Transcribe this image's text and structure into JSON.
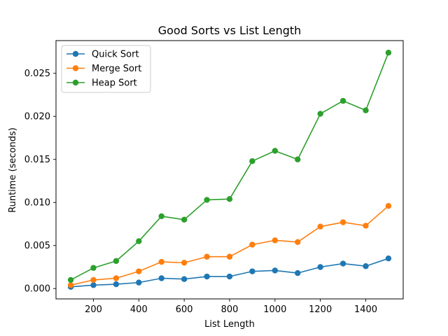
{
  "chart_data": {
    "type": "line",
    "title": "Good Sorts vs List Length",
    "xlabel": "List Length",
    "ylabel": "Runtime (seconds)",
    "x": [
      100,
      200,
      300,
      400,
      500,
      600,
      700,
      800,
      900,
      1000,
      1100,
      1200,
      1300,
      1400,
      1500
    ],
    "xlim": [
      35,
      1565
    ],
    "ylim": [
      -0.0012,
      0.0288
    ],
    "xticks": [
      200,
      400,
      600,
      800,
      1000,
      1200,
      1400
    ],
    "yticks": [
      0.0,
      0.005,
      0.01,
      0.015,
      0.02,
      0.025
    ],
    "xtick_labels": [
      "200",
      "400",
      "600",
      "800",
      "1000",
      "1200",
      "1400"
    ],
    "ytick_labels": [
      "0.000",
      "0.005",
      "0.010",
      "0.015",
      "0.020",
      "0.025"
    ],
    "grid": false,
    "legend_position": "top-left",
    "series": [
      {
        "name": "Quick Sort",
        "color": "#1f77b4",
        "values": [
          0.0002,
          0.0004,
          0.0005,
          0.0007,
          0.0012,
          0.0011,
          0.0014,
          0.0014,
          0.002,
          0.0021,
          0.0018,
          0.0025,
          0.0029,
          0.0026,
          0.0035
        ]
      },
      {
        "name": "Merge Sort",
        "color": "#ff7f0e",
        "values": [
          0.0004,
          0.001,
          0.0012,
          0.002,
          0.0031,
          0.003,
          0.0037,
          0.0037,
          0.0051,
          0.0056,
          0.0054,
          0.0072,
          0.0077,
          0.0073,
          0.0096
        ]
      },
      {
        "name": "Heap Sort",
        "color": "#2ca02c",
        "values": [
          0.001,
          0.0024,
          0.0032,
          0.0055,
          0.0084,
          0.008,
          0.0103,
          0.0104,
          0.0148,
          0.016,
          0.015,
          0.0203,
          0.0218,
          0.0207,
          0.0274
        ]
      }
    ]
  }
}
